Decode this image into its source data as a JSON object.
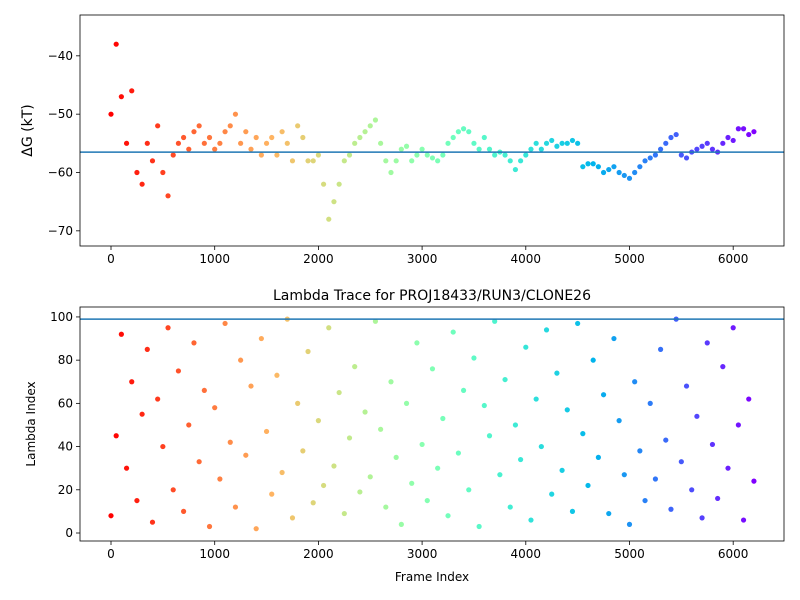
{
  "chart_data": [
    {
      "type": "scatter",
      "ylabel": "ΔG (kT)",
      "colormap": "rainbow_r",
      "hline": -56.5,
      "hline_color": "#1f77b4",
      "xlim": [
        -299,
        6490
      ],
      "ylim": [
        -72.6,
        -33
      ],
      "xticks": [
        0,
        1000,
        2000,
        3000,
        4000,
        5000,
        6000
      ],
      "yticks": [
        -70,
        -60,
        -50,
        -40
      ],
      "x": [
        0,
        50,
        100,
        150,
        200,
        250,
        300,
        350,
        400,
        450,
        500,
        550,
        600,
        650,
        700,
        750,
        800,
        850,
        900,
        950,
        1000,
        1050,
        1100,
        1150,
        1200,
        1250,
        1300,
        1350,
        1400,
        1450,
        1500,
        1550,
        1600,
        1650,
        1700,
        1750,
        1800,
        1850,
        1900,
        1950,
        2000,
        2050,
        2100,
        2150,
        2200,
        2250,
        2300,
        2350,
        2400,
        2450,
        2500,
        2550,
        2600,
        2650,
        2700,
        2750,
        2800,
        2850,
        2900,
        2950,
        3000,
        3050,
        3100,
        3150,
        3200,
        3250,
        3300,
        3350,
        3400,
        3450,
        3500,
        3550,
        3600,
        3650,
        3700,
        3750,
        3800,
        3850,
        3900,
        3950,
        4000,
        4050,
        4100,
        4150,
        4200,
        4250,
        4300,
        4350,
        4400,
        4450,
        4500,
        4550,
        4600,
        4650,
        4700,
        4750,
        4800,
        4850,
        4900,
        4950,
        5000,
        5050,
        5100,
        5150,
        5200,
        5250,
        5300,
        5350,
        5400,
        5450,
        5500,
        5550,
        5600,
        5650,
        5700,
        5750,
        5800,
        5850,
        5900,
        5950,
        6000,
        6050,
        6100,
        6150,
        6200
      ],
      "values": [
        -50,
        -38,
        -47,
        -55,
        -46,
        -60,
        -62,
        -55,
        -58,
        -52,
        -60,
        -64,
        -57,
        -55,
        -54,
        -56,
        -53,
        -52,
        -55,
        -54,
        -56,
        -55,
        -53,
        -52,
        -50,
        -55,
        -53,
        -56,
        -54,
        -57,
        -55,
        -54,
        -57,
        -53,
        -55,
        -58,
        -52,
        -54,
        -58,
        -58,
        -57,
        -62,
        -68,
        -65,
        -62,
        -58,
        -57,
        -55,
        -54,
        -53,
        -52,
        -51,
        -55,
        -58,
        -60,
        -58,
        -56,
        -55.5,
        -58,
        -57,
        -56,
        -57,
        -57.5,
        -58,
        -57,
        -55,
        -54,
        -53,
        -52.5,
        -53,
        -55,
        -56,
        -54,
        -56,
        -57,
        -56.5,
        -57,
        -58,
        -59.5,
        -58,
        -57,
        -56,
        -55,
        -56,
        -55,
        -54.5,
        -55.5,
        -55,
        -55,
        -54.5,
        -55,
        -59,
        -58.5,
        -58.5,
        -59,
        -60,
        -59.5,
        -59,
        -60,
        -60.5,
        -61,
        -60,
        -59,
        -58,
        -57.5,
        -57,
        -56,
        -55,
        -54,
        -53.5,
        -57,
        -57.5,
        -56.5,
        -56,
        -55.5,
        -55,
        -56,
        -56.5,
        -55,
        -54,
        -54.5,
        -52.5,
        -52.5,
        -53.5,
        -53
      ]
    },
    {
      "type": "scatter",
      "title": "Lambda Trace for PROJ18433/RUN3/CLONE26",
      "xlabel": "Frame Index",
      "ylabel": "Lambda Index",
      "colormap": "rainbow_r",
      "hline": 99,
      "hline_color": "#1f77b4",
      "xlim": [
        -299,
        6490
      ],
      "ylim": [
        -3.7,
        104.6
      ],
      "xticks": [
        0,
        1000,
        2000,
        3000,
        4000,
        5000,
        6000
      ],
      "yticks": [
        0,
        20,
        40,
        60,
        80,
        100
      ],
      "x": [
        0,
        50,
        100,
        150,
        200,
        250,
        300,
        350,
        400,
        450,
        500,
        550,
        600,
        650,
        700,
        750,
        800,
        850,
        900,
        950,
        1000,
        1050,
        1100,
        1150,
        1200,
        1250,
        1300,
        1350,
        1400,
        1450,
        1500,
        1550,
        1600,
        1650,
        1700,
        1750,
        1800,
        1850,
        1900,
        1950,
        2000,
        2050,
        2100,
        2150,
        2200,
        2250,
        2300,
        2350,
        2400,
        2450,
        2500,
        2550,
        2600,
        2650,
        2700,
        2750,
        2800,
        2850,
        2900,
        2950,
        3000,
        3050,
        3100,
        3150,
        3200,
        3250,
        3300,
        3350,
        3400,
        3450,
        3500,
        3550,
        3600,
        3650,
        3700,
        3750,
        3800,
        3850,
        3900,
        3950,
        4000,
        4050,
        4100,
        4150,
        4200,
        4250,
        4300,
        4350,
        4400,
        4450,
        4500,
        4550,
        4600,
        4650,
        4700,
        4750,
        4800,
        4850,
        4900,
        4950,
        5000,
        5050,
        5100,
        5150,
        5200,
        5250,
        5300,
        5350,
        5400,
        5450,
        5500,
        5550,
        5600,
        5650,
        5700,
        5750,
        5800,
        5850,
        5900,
        5950,
        6000,
        6050,
        6100,
        6150,
        6200
      ],
      "values": [
        8,
        45,
        92,
        30,
        70,
        15,
        55,
        85,
        5,
        62,
        40,
        95,
        20,
        75,
        10,
        50,
        88,
        33,
        66,
        3,
        58,
        25,
        97,
        42,
        12,
        80,
        36,
        68,
        2,
        90,
        47,
        18,
        73,
        28,
        99,
        7,
        60,
        38,
        84,
        14,
        52,
        22,
        95,
        31,
        65,
        9,
        44,
        77,
        19,
        56,
        26,
        98,
        48,
        12,
        70,
        35,
        4,
        60,
        23,
        88,
        41,
        15,
        76,
        30,
        53,
        8,
        93,
        37,
        66,
        20,
        81,
        3,
        59,
        45,
        98,
        27,
        71,
        12,
        50,
        34,
        86,
        6,
        62,
        40,
        94,
        18,
        74,
        29,
        57,
        10,
        97,
        46,
        22,
        80,
        35,
        64,
        9,
        90,
        52,
        27,
        4,
        70,
        38,
        15,
        60,
        25,
        85,
        43,
        11,
        99,
        33,
        68,
        20,
        54,
        7,
        88,
        41,
        16,
        77,
        30,
        95,
        50,
        6,
        62,
        24
      ]
    }
  ]
}
